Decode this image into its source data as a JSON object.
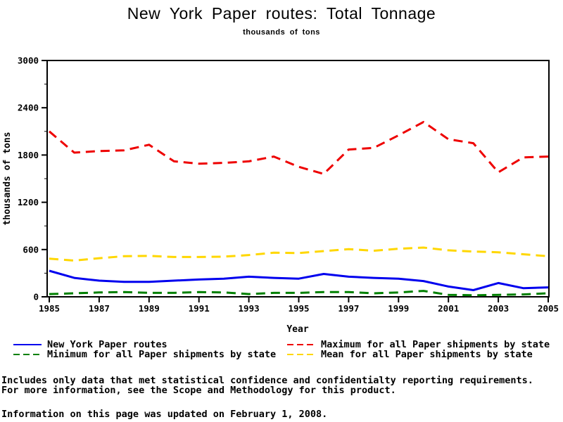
{
  "title": "New York Paper routes: Total Tonnage",
  "subtitle": "thousands of tons",
  "footer": {
    "line1": "Includes only data that met statistical confidence and confidentialty reporting requirements.",
    "line2": "For more information, see the Scope and Methodology for this product.",
    "line3": "Information on this page was updated on February 1, 2008."
  },
  "chart_data": {
    "type": "line",
    "title": "New York Paper routes: Total Tonnage",
    "subtitle": "thousands of tons",
    "xlabel": "Year",
    "ylabel": "thousands of tons",
    "xlim": [
      1985,
      2005
    ],
    "ylim": [
      0,
      3000
    ],
    "grid": false,
    "legend_position": "bottom",
    "x_ticks": [
      1985,
      1987,
      1989,
      1991,
      1993,
      1995,
      1997,
      1999,
      2001,
      2003,
      2005
    ],
    "y_ticks": [
      0,
      600,
      1200,
      1800,
      2400,
      3000
    ],
    "y_minor_ticks": [
      300,
      900,
      1500,
      2100,
      2700
    ],
    "x": [
      1985,
      1986,
      1987,
      1988,
      1989,
      1990,
      1991,
      1992,
      1993,
      1994,
      1995,
      1996,
      1997,
      1998,
      1999,
      2000,
      2001,
      2002,
      2003,
      2004,
      2005
    ],
    "series": [
      {
        "name": "New York Paper routes",
        "color": "#0000ee",
        "style": "solid",
        "values": [
          330,
          240,
          205,
          190,
          190,
          205,
          220,
          230,
          255,
          240,
          230,
          290,
          255,
          240,
          230,
          200,
          130,
          85,
          175,
          110,
          120
        ]
      },
      {
        "name": "Maximum for all Paper shipments by state",
        "color": "#ee0000",
        "style": "dashed",
        "values": [
          2100,
          1830,
          1850,
          1860,
          1930,
          1720,
          1690,
          1700,
          1720,
          1780,
          1650,
          1560,
          1870,
          1890,
          2050,
          2220,
          2000,
          1950,
          1580,
          1770,
          1780
        ]
      },
      {
        "name": "Minimum for all Paper shipments by state",
        "color": "#008000",
        "style": "dashed",
        "values": [
          35,
          45,
          55,
          60,
          50,
          50,
          60,
          55,
          35,
          50,
          50,
          60,
          60,
          45,
          55,
          75,
          25,
          20,
          25,
          30,
          45
        ]
      },
      {
        "name": "Mean for all Paper shipments by state",
        "color": "#ffd700",
        "style": "dashed",
        "values": [
          485,
          460,
          490,
          515,
          520,
          505,
          505,
          510,
          530,
          560,
          555,
          580,
          605,
          585,
          610,
          625,
          590,
          575,
          565,
          540,
          515
        ]
      }
    ]
  }
}
